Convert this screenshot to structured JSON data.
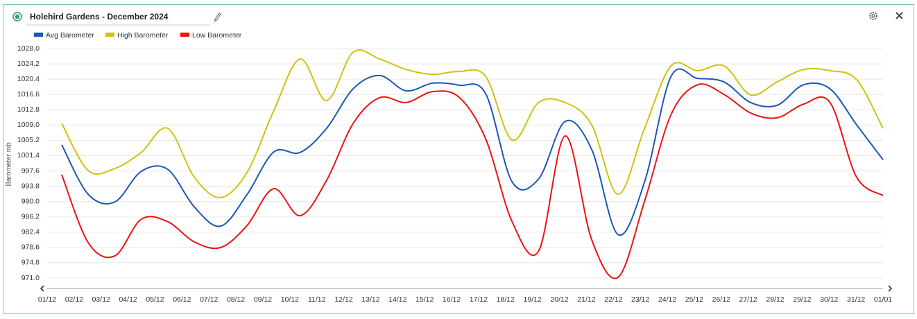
{
  "chart_data": {
    "type": "line",
    "title": "Holehird Gardens - December 2024",
    "y_label": "Barometer mb",
    "categories": [
      "01/12",
      "02/12",
      "03/12",
      "04/12",
      "05/12",
      "06/12",
      "07/12",
      "08/12",
      "09/12",
      "10/12",
      "11/12",
      "12/12",
      "13/12",
      "14/12",
      "15/12",
      "16/12",
      "17/12",
      "18/12",
      "19/12",
      "20/12",
      "21/12",
      "22/12",
      "23/12",
      "24/12",
      "25/12",
      "26/12",
      "27/12",
      "28/12",
      "29/12",
      "30/12",
      "31/12",
      "01/01"
    ],
    "series": [
      {
        "name": "Avg Barometer",
        "color": "#1a56b8",
        "values": [
          1004.1,
          991.8,
          989.9,
          997.5,
          998.0,
          988.7,
          983.9,
          991.8,
          1002.3,
          1002.2,
          1008.2,
          1018.0,
          1021.3,
          1017.5,
          1019.4,
          1018.9,
          1016.8,
          994.9,
          995.6,
          1009.9,
          1003.0,
          981.8,
          994.9,
          1021.1,
          1020.6,
          1019.7,
          1014.6,
          1013.9,
          1019.0,
          1018.0,
          1009.1,
          1000.4
        ]
      },
      {
        "name": "High Barometer",
        "color": "#cfc20c",
        "values": [
          1009.4,
          997.7,
          998.2,
          1002.2,
          1008.2,
          996.1,
          991.0,
          997.3,
          1012.5,
          1025.4,
          1015.1,
          1027.1,
          1025.4,
          1022.8,
          1021.6,
          1022.3,
          1021.1,
          1005.3,
          1014.6,
          1014.6,
          1009.1,
          991.8,
          1008.2,
          1023.7,
          1022.5,
          1023.7,
          1016.5,
          1019.7,
          1022.8,
          1022.5,
          1020.3,
          1008.2
        ]
      },
      {
        "name": "Low Barometer",
        "color": "#ee1111",
        "values": [
          996.7,
          979.8,
          976.5,
          985.6,
          985.0,
          980.0,
          978.6,
          984.1,
          993.2,
          986.5,
          995.3,
          1009.4,
          1015.8,
          1014.6,
          1017.3,
          1015.9,
          1005.6,
          985.0,
          977.7,
          1006.3,
          980.6,
          971.2,
          990.1,
          1011.6,
          1019.0,
          1016.6,
          1012.0,
          1010.8,
          1014.2,
          1014.6,
          996.1,
          991.5
        ]
      }
    ],
    "ylim": [
      971,
      1028
    ],
    "yticks": [
      {
        "value": 971,
        "label": "971.0"
      },
      {
        "value": 974.8,
        "label": "974.8"
      },
      {
        "value": 978.6,
        "label": "978.6"
      },
      {
        "value": 982.4,
        "label": "982.4"
      },
      {
        "value": 986.2,
        "label": "986.2"
      },
      {
        "value": 990,
        "label": "990.0"
      },
      {
        "value": 993.8,
        "label": "993.8"
      },
      {
        "value": 997.6,
        "label": "997.6"
      },
      {
        "value": 1001.4,
        "label": "1001.4"
      },
      {
        "value": 1005.2,
        "label": "1005.2"
      },
      {
        "value": 1009,
        "label": "1009.0"
      },
      {
        "value": 1012.8,
        "label": "1012.8"
      },
      {
        "value": 1016.6,
        "label": "1016.6"
      },
      {
        "value": 1020.4,
        "label": "1020.4"
      },
      {
        "value": 1024.2,
        "label": "1024.2"
      },
      {
        "value": 1028,
        "label": "1028.0"
      }
    ],
    "grid": true
  }
}
